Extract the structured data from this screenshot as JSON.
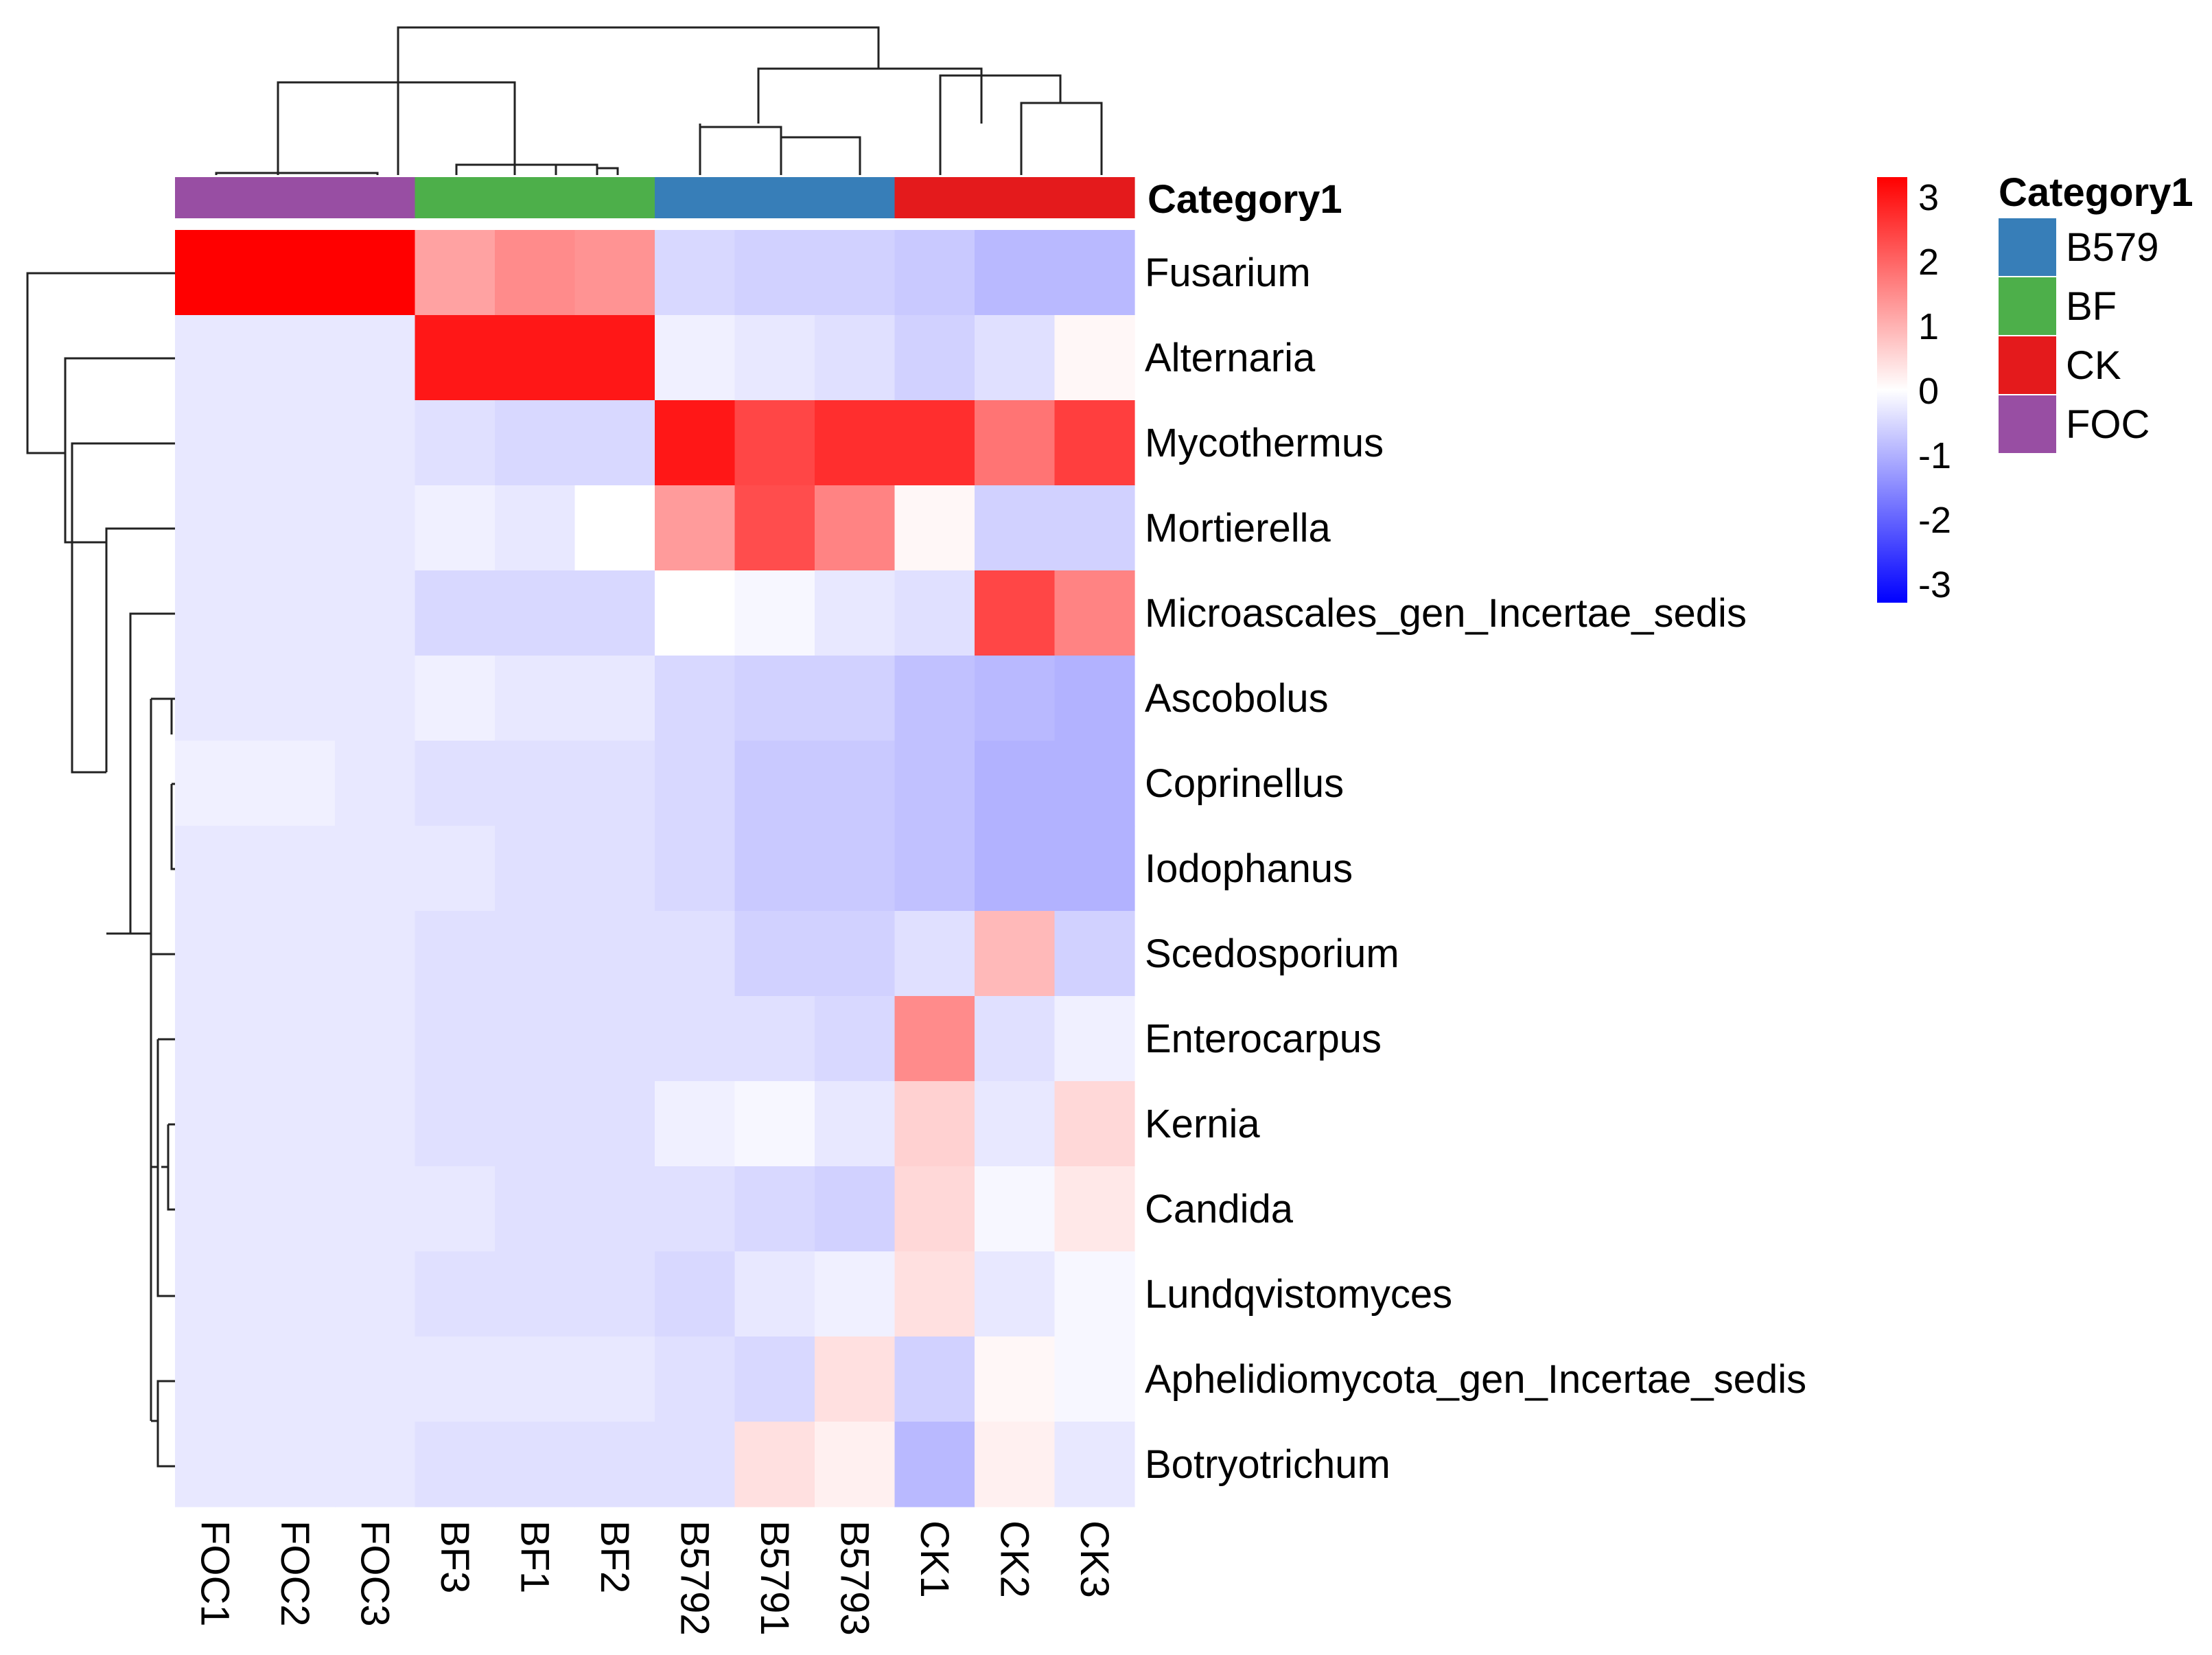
{
  "chart_data": {
    "type": "heatmap",
    "title": "",
    "annotation_title": "Category1",
    "columns": [
      "FOC1",
      "FOC2",
      "FOC3",
      "BF3",
      "BF1",
      "BF2",
      "B5792",
      "B5791",
      "B5793",
      "CK1",
      "CK2",
      "CK3"
    ],
    "column_groups": [
      "FOC",
      "FOC",
      "FOC",
      "BF",
      "BF",
      "BF",
      "B579",
      "B579",
      "B579",
      "CK",
      "CK",
      "CK"
    ],
    "rows": [
      "Fusarium",
      "Alternaria",
      "Mycothermus",
      "Mortierella",
      "Microascales_gen_Incertae_sedis",
      "Ascobolus",
      "Coprinellus",
      "Iodophanus",
      "Scedosporium",
      "Enterocarpus",
      "Kernia",
      "Candida",
      "Lundqvistomyces",
      "Aphelidiomycota_gen_Incertae_sedis",
      "Botryotrichum"
    ],
    "values": [
      [
        3.3,
        3.3,
        3.3,
        1.2,
        1.5,
        1.4,
        -0.5,
        -0.6,
        -0.6,
        -0.7,
        -0.9,
        -0.9
      ],
      [
        -0.3,
        -0.3,
        -0.3,
        3.0,
        3.0,
        3.0,
        -0.2,
        -0.3,
        -0.4,
        -0.6,
        -0.4,
        0.1
      ],
      [
        -0.3,
        -0.3,
        -0.3,
        -0.4,
        -0.5,
        -0.5,
        3.0,
        2.4,
        2.7,
        2.7,
        1.8,
        2.5
      ],
      [
        -0.3,
        -0.3,
        -0.3,
        -0.2,
        -0.3,
        0.0,
        1.3,
        2.3,
        1.6,
        0.1,
        -0.6,
        -0.6
      ],
      [
        -0.3,
        -0.3,
        -0.3,
        -0.5,
        -0.5,
        -0.5,
        0.0,
        -0.1,
        -0.3,
        -0.4,
        2.4,
        1.6
      ],
      [
        -0.3,
        -0.3,
        -0.3,
        -0.2,
        -0.3,
        -0.3,
        -0.5,
        -0.6,
        -0.6,
        -0.8,
        -0.9,
        -1.0
      ],
      [
        -0.2,
        -0.2,
        -0.3,
        -0.4,
        -0.4,
        -0.4,
        -0.5,
        -0.7,
        -0.7,
        -0.8,
        -1.0,
        -1.0
      ],
      [
        -0.3,
        -0.3,
        -0.3,
        -0.3,
        -0.4,
        -0.4,
        -0.5,
        -0.7,
        -0.7,
        -0.8,
        -1.0,
        -1.0
      ],
      [
        -0.3,
        -0.3,
        -0.3,
        -0.4,
        -0.4,
        -0.4,
        -0.4,
        -0.6,
        -0.6,
        -0.4,
        0.9,
        -0.6
      ],
      [
        -0.3,
        -0.3,
        -0.3,
        -0.4,
        -0.4,
        -0.4,
        -0.4,
        -0.4,
        -0.5,
        1.5,
        -0.4,
        -0.2
      ],
      [
        -0.3,
        -0.3,
        -0.3,
        -0.4,
        -0.4,
        -0.4,
        -0.2,
        -0.1,
        -0.3,
        0.6,
        -0.3,
        0.5
      ],
      [
        -0.3,
        -0.3,
        -0.3,
        -0.3,
        -0.4,
        -0.4,
        -0.4,
        -0.5,
        -0.6,
        0.5,
        -0.1,
        0.3
      ],
      [
        -0.3,
        -0.3,
        -0.3,
        -0.4,
        -0.4,
        -0.4,
        -0.5,
        -0.3,
        -0.2,
        0.4,
        -0.3,
        -0.1
      ],
      [
        -0.3,
        -0.3,
        -0.3,
        -0.3,
        -0.3,
        -0.3,
        -0.4,
        -0.5,
        0.4,
        -0.6,
        0.1,
        -0.1
      ],
      [
        -0.3,
        -0.3,
        -0.3,
        -0.4,
        -0.4,
        -0.4,
        -0.4,
        0.4,
        0.2,
        -0.9,
        0.2,
        -0.3
      ]
    ],
    "color_scale": {
      "min": -3.3,
      "max": 3.3,
      "ticks": [
        3,
        2,
        1,
        0,
        -1,
        -2,
        -3
      ],
      "tick_labels": [
        "3",
        "2",
        "1",
        "0",
        "-1",
        "-2",
        "-3"
      ],
      "low_color": "#0000ff",
      "mid_color": "#ffffff",
      "high_color": "#ff0000"
    },
    "legend": {
      "title": "Category1",
      "entries": [
        {
          "label": "B579",
          "color": "#377eb8"
        },
        {
          "label": "BF",
          "color": "#4daf4a"
        },
        {
          "label": "CK",
          "color": "#e41a1c"
        },
        {
          "label": "FOC",
          "color": "#984ea3"
        }
      ]
    },
    "row_dendrogram": true,
    "column_dendrogram": true
  }
}
